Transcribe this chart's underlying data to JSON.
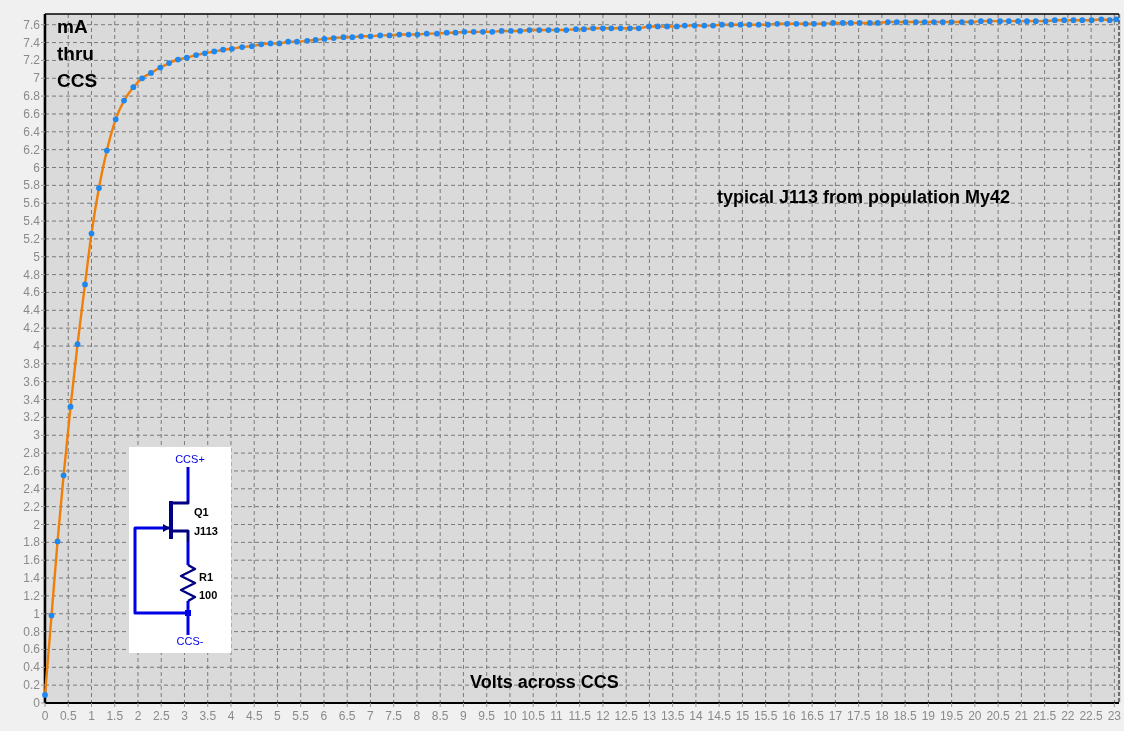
{
  "chart_data": {
    "type": "line",
    "xlabel": "Volts across CCS",
    "ylabel": "mA thru CCS",
    "annotations": [
      "typical J113 from population My42",
      "CCS+",
      "Q1",
      "J113",
      "R1",
      "100",
      "CCS-"
    ],
    "x": [
      0,
      0.14,
      0.27,
      0.4,
      0.55,
      0.7,
      0.86,
      1.0,
      1.16,
      1.33,
      1.52,
      1.7,
      1.9,
      2.09,
      2.28,
      2.48,
      2.67,
      2.86,
      3.05,
      3.25,
      3.44,
      3.64,
      3.83,
      4.02,
      4.24,
      4.45,
      4.65,
      4.85,
      5.04,
      5.23,
      5.42,
      5.64,
      5.82,
      6.01,
      6.21,
      6.42,
      6.61,
      6.8,
      7.0,
      7.21,
      7.41,
      7.62,
      7.82,
      8.01,
      8.21,
      8.43,
      8.64,
      8.83,
      9.02,
      9.22,
      9.42,
      9.62,
      9.82,
      10.02,
      10.22,
      10.42,
      10.63,
      10.83,
      11.01,
      11.21,
      11.42,
      11.59,
      11.79,
      12.0,
      12.18,
      12.38,
      12.58,
      12.77,
      12.99,
      13.18,
      13.38,
      13.59,
      13.76,
      13.97,
      14.18,
      14.37,
      14.56,
      14.76,
      14.96,
      15.15,
      15.35,
      15.55,
      15.75,
      15.96,
      16.16,
      16.36,
      16.54,
      16.75,
      16.95,
      17.16,
      17.33,
      17.52,
      17.74,
      17.91,
      18.13,
      18.32,
      18.51,
      18.73,
      18.92,
      19.12,
      19.31,
      19.5,
      19.72,
      19.92,
      20.13,
      20.32,
      20.54,
      20.73,
      20.93,
      21.12,
      21.31,
      21.52,
      21.72,
      21.92,
      22.12,
      22.31,
      22.51,
      22.72,
      22.9,
      23.04
    ],
    "series": [
      {
        "color": "#f07f0a",
        "values": [
          0.09,
          0.98,
          1.81,
          2.55,
          3.32,
          4.02,
          4.69,
          5.26,
          5.77,
          6.19,
          6.54,
          6.75,
          6.9,
          7.0,
          7.06,
          7.12,
          7.17,
          7.21,
          7.23,
          7.26,
          7.28,
          7.3,
          7.32,
          7.33,
          7.35,
          7.36,
          7.38,
          7.39,
          7.39,
          7.41,
          7.41,
          7.42,
          7.43,
          7.44,
          7.45,
          7.46,
          7.46,
          7.47,
          7.47,
          7.48,
          7.48,
          7.49,
          7.49,
          7.49,
          7.5,
          7.5,
          7.51,
          7.51,
          7.52,
          7.52,
          7.52,
          7.52,
          7.53,
          7.53,
          7.53,
          7.54,
          7.54,
          7.54,
          7.54,
          7.54,
          7.55,
          7.55,
          7.56,
          7.56,
          7.56,
          7.56,
          7.56,
          7.56,
          7.58,
          7.58,
          7.58,
          7.58,
          7.59,
          7.59,
          7.59,
          7.59,
          7.6,
          7.6,
          7.6,
          7.6,
          7.6,
          7.6,
          7.61,
          7.61,
          7.61,
          7.61,
          7.61,
          7.61,
          7.62,
          7.62,
          7.62,
          7.62,
          7.62,
          7.62,
          7.63,
          7.63,
          7.63,
          7.63,
          7.63,
          7.63,
          7.63,
          7.63,
          7.63,
          7.63,
          7.64,
          7.64,
          7.64,
          7.64,
          7.64,
          7.64,
          7.64,
          7.64,
          7.65,
          7.65,
          7.65,
          7.65,
          7.65,
          7.66,
          7.65,
          7.66
        ]
      },
      {
        "type": "scatter",
        "color": "#1e88f0",
        "marker": "circle",
        "values": [
          0.09,
          0.98,
          1.81,
          2.55,
          3.32,
          4.02,
          4.69,
          5.26,
          5.77,
          6.19,
          6.54,
          6.75,
          6.9,
          7.0,
          7.06,
          7.12,
          7.17,
          7.21,
          7.23,
          7.26,
          7.28,
          7.3,
          7.32,
          7.33,
          7.35,
          7.36,
          7.38,
          7.39,
          7.39,
          7.41,
          7.41,
          7.42,
          7.43,
          7.44,
          7.45,
          7.46,
          7.46,
          7.47,
          7.47,
          7.48,
          7.48,
          7.49,
          7.49,
          7.49,
          7.5,
          7.5,
          7.51,
          7.51,
          7.52,
          7.52,
          7.52,
          7.52,
          7.53,
          7.53,
          7.53,
          7.54,
          7.54,
          7.54,
          7.54,
          7.54,
          7.55,
          7.55,
          7.56,
          7.56,
          7.56,
          7.56,
          7.56,
          7.56,
          7.58,
          7.58,
          7.58,
          7.58,
          7.59,
          7.59,
          7.59,
          7.59,
          7.6,
          7.6,
          7.6,
          7.6,
          7.6,
          7.6,
          7.61,
          7.61,
          7.61,
          7.61,
          7.61,
          7.61,
          7.62,
          7.62,
          7.62,
          7.62,
          7.62,
          7.62,
          7.63,
          7.63,
          7.63,
          7.63,
          7.63,
          7.63,
          7.63,
          7.63,
          7.63,
          7.63,
          7.64,
          7.64,
          7.64,
          7.64,
          7.64,
          7.64,
          7.64,
          7.64,
          7.65,
          7.65,
          7.65,
          7.65,
          7.65,
          7.66,
          7.65,
          7.66
        ]
      }
    ],
    "xlim": [
      0,
      23.1
    ],
    "xticks": [
      0,
      0.5,
      1,
      1.5,
      2,
      2.5,
      3,
      3.5,
      4,
      4.5,
      5,
      5.5,
      6,
      6.5,
      7,
      7.5,
      8,
      8.5,
      9,
      9.5,
      10,
      10.5,
      11,
      11.5,
      12,
      12.5,
      13,
      13.5,
      14,
      14.5,
      15,
      15.5,
      16,
      16.5,
      17,
      17.5,
      18,
      18.5,
      19,
      19.5,
      20,
      20.5,
      21,
      21.5,
      22,
      22.5,
      23
    ],
    "ylim": [
      0,
      7.72
    ],
    "yticks": [
      0,
      0.2,
      0.4,
      0.6,
      0.8,
      1,
      1.2,
      1.4,
      1.6,
      1.8,
      2,
      2.2,
      2.4,
      2.6,
      2.8,
      3,
      3.2,
      3.4,
      3.6,
      3.8,
      4,
      4.2,
      4.4,
      4.6,
      4.8,
      5,
      5.2,
      5.4,
      5.6,
      5.8,
      6,
      6.2,
      6.4,
      6.6,
      6.8,
      7,
      7.2,
      7.4,
      7.6
    ],
    "grid": true
  }
}
